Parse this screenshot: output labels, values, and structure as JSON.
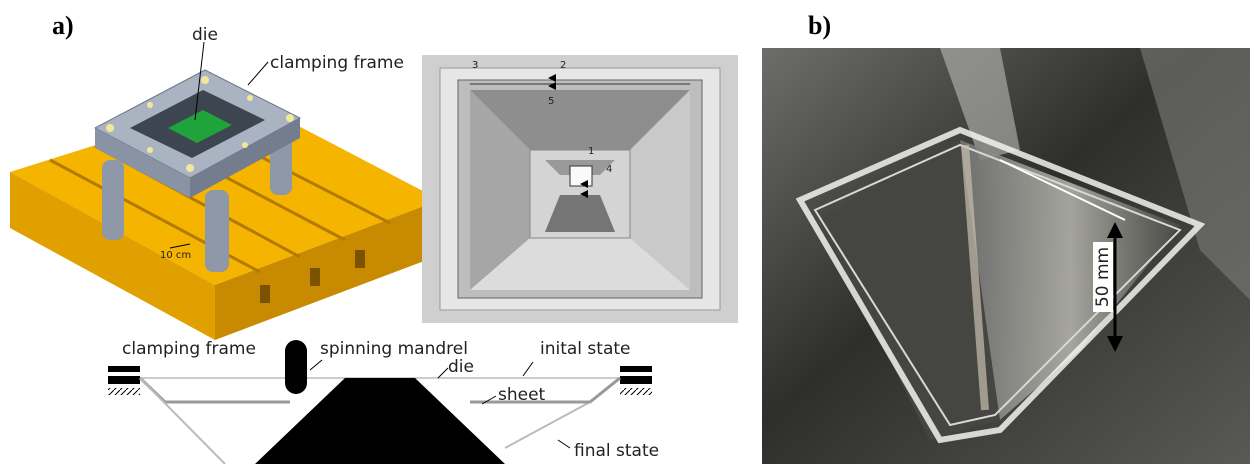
{
  "panel_a": {
    "label": "a)",
    "model_labels": {
      "die": "die",
      "clamping_frame": "clamping frame",
      "scale": "10 cm"
    },
    "top_view_markers": [
      "1",
      "2",
      "3",
      "4",
      "5"
    ],
    "schematic_labels": {
      "clamping_frame": "clamping frame",
      "spinning_mandrel": "spinning mandrel",
      "die": "die",
      "initial_state": "inital state",
      "sheet": "sheet",
      "final_state": "final state"
    }
  },
  "panel_b": {
    "label": "b)",
    "scale": "50 mm"
  }
}
